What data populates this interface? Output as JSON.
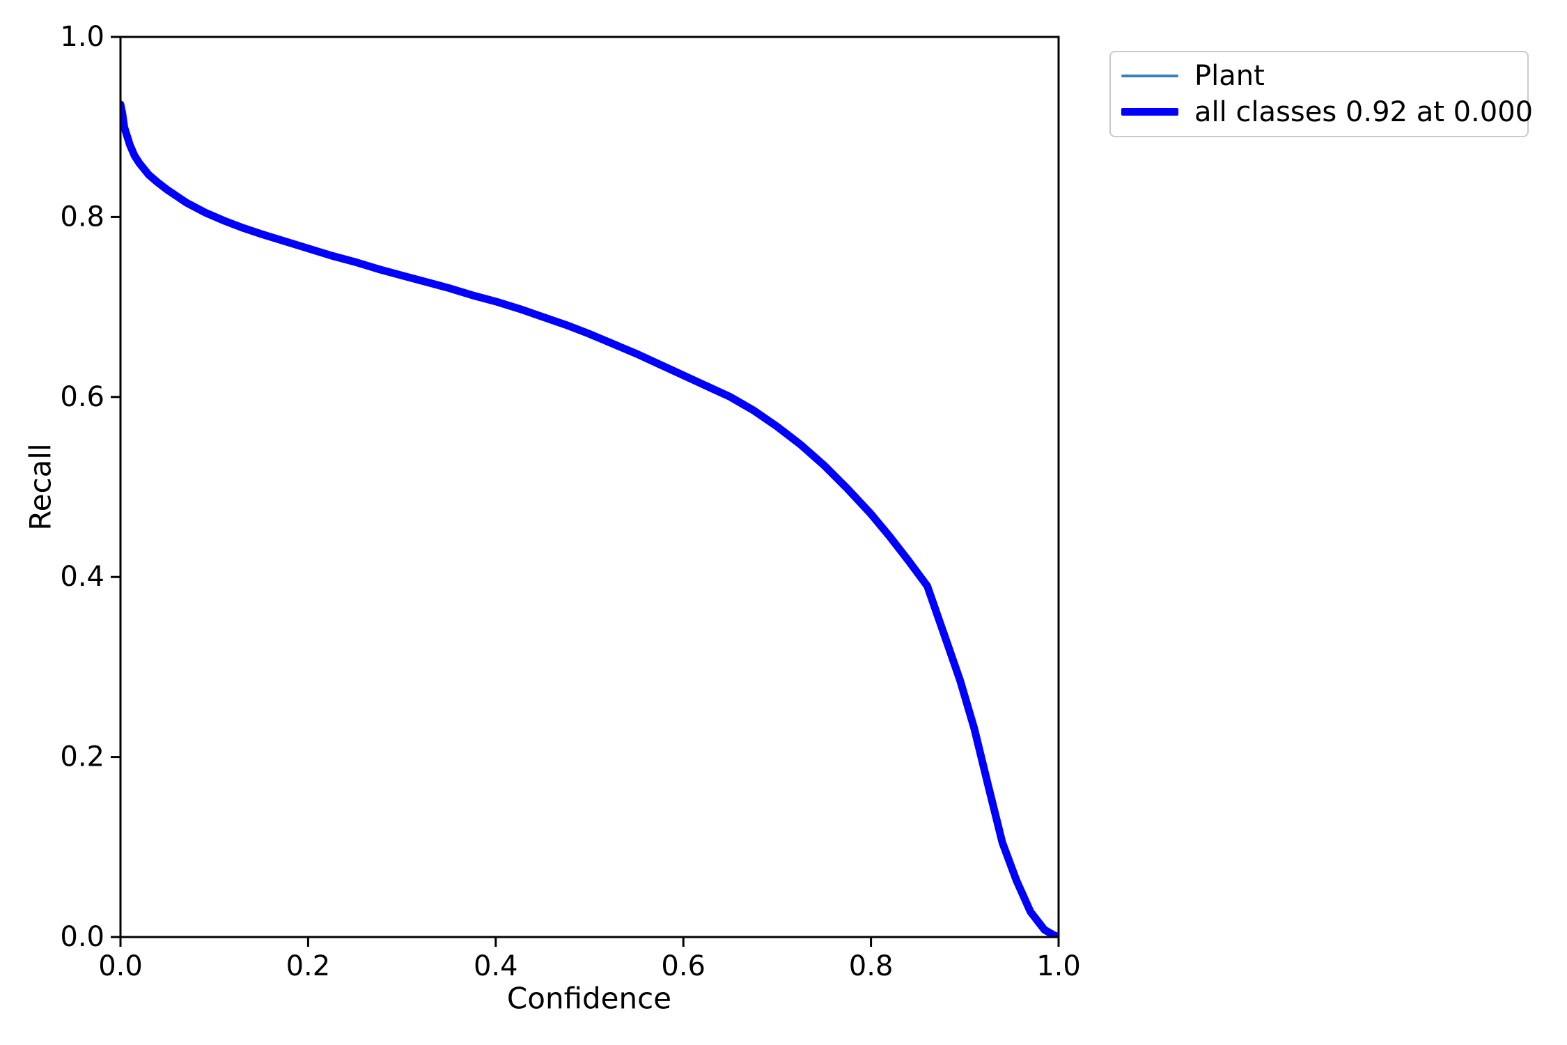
{
  "figure": {
    "background": "#ffffff",
    "axes_color": "#000000"
  },
  "chart_data": {
    "type": "line",
    "title": "",
    "xlabel": "Confidence",
    "ylabel": "Recall",
    "xlim": [
      0,
      1
    ],
    "ylim": [
      0,
      1
    ],
    "xticks": [
      "0.0",
      "0.2",
      "0.4",
      "0.6",
      "0.8",
      "1.0"
    ],
    "yticks": [
      "0.0",
      "0.2",
      "0.4",
      "0.6",
      "0.8",
      "1.0"
    ],
    "grid": false,
    "legend": {
      "position": "outside-upper-right",
      "border_color": "#c9c9c9",
      "entries": [
        {
          "label": "Plant",
          "color": "#3d7fb8",
          "sample_thickness": 4
        },
        {
          "label": "all classes 0.92 at 0.000",
          "color": "#0000ff",
          "sample_thickness": 11
        }
      ]
    },
    "series": [
      {
        "name": "Plant",
        "color": "#3d7fb8",
        "linewidth": 3,
        "x": [
          0.0,
          0.002,
          0.004,
          0.007,
          0.01,
          0.015,
          0.02,
          0.03,
          0.04,
          0.05,
          0.07,
          0.09,
          0.11,
          0.13,
          0.15,
          0.175,
          0.2,
          0.225,
          0.25,
          0.275,
          0.3,
          0.325,
          0.35,
          0.375,
          0.4,
          0.425,
          0.45,
          0.475,
          0.5,
          0.525,
          0.55,
          0.575,
          0.6,
          0.625,
          0.65,
          0.675,
          0.7,
          0.725,
          0.75,
          0.775,
          0.8,
          0.82,
          0.84,
          0.86,
          0.88,
          0.895,
          0.91,
          0.925,
          0.94,
          0.955,
          0.97,
          0.985,
          0.995,
          1.0
        ],
        "y": [
          0.925,
          0.915,
          0.9,
          0.89,
          0.88,
          0.868,
          0.86,
          0.847,
          0.838,
          0.83,
          0.816,
          0.805,
          0.796,
          0.788,
          0.781,
          0.773,
          0.765,
          0.757,
          0.75,
          0.742,
          0.735,
          0.728,
          0.721,
          0.713,
          0.706,
          0.698,
          0.689,
          0.68,
          0.67,
          0.659,
          0.648,
          0.636,
          0.624,
          0.612,
          0.6,
          0.585,
          0.567,
          0.547,
          0.524,
          0.498,
          0.47,
          0.445,
          0.418,
          0.39,
          0.33,
          0.285,
          0.232,
          0.168,
          0.105,
          0.063,
          0.028,
          0.008,
          0.002,
          0.0
        ]
      },
      {
        "name": "all classes 0.92 at 0.000",
        "color": "#0000ff",
        "linewidth": 11,
        "x": [
          0.0,
          0.002,
          0.004,
          0.007,
          0.01,
          0.015,
          0.02,
          0.03,
          0.04,
          0.05,
          0.07,
          0.09,
          0.11,
          0.13,
          0.15,
          0.175,
          0.2,
          0.225,
          0.25,
          0.275,
          0.3,
          0.325,
          0.35,
          0.375,
          0.4,
          0.425,
          0.45,
          0.475,
          0.5,
          0.525,
          0.55,
          0.575,
          0.6,
          0.625,
          0.65,
          0.675,
          0.7,
          0.725,
          0.75,
          0.775,
          0.8,
          0.82,
          0.84,
          0.86,
          0.88,
          0.895,
          0.91,
          0.925,
          0.94,
          0.955,
          0.97,
          0.985,
          0.995,
          1.0
        ],
        "y": [
          0.925,
          0.915,
          0.9,
          0.89,
          0.88,
          0.868,
          0.86,
          0.847,
          0.838,
          0.83,
          0.816,
          0.805,
          0.796,
          0.788,
          0.781,
          0.773,
          0.765,
          0.757,
          0.75,
          0.742,
          0.735,
          0.728,
          0.721,
          0.713,
          0.706,
          0.698,
          0.689,
          0.68,
          0.67,
          0.659,
          0.648,
          0.636,
          0.624,
          0.612,
          0.6,
          0.585,
          0.567,
          0.547,
          0.524,
          0.498,
          0.47,
          0.445,
          0.418,
          0.39,
          0.33,
          0.285,
          0.232,
          0.168,
          0.105,
          0.063,
          0.028,
          0.008,
          0.002,
          0.0
        ]
      }
    ]
  }
}
